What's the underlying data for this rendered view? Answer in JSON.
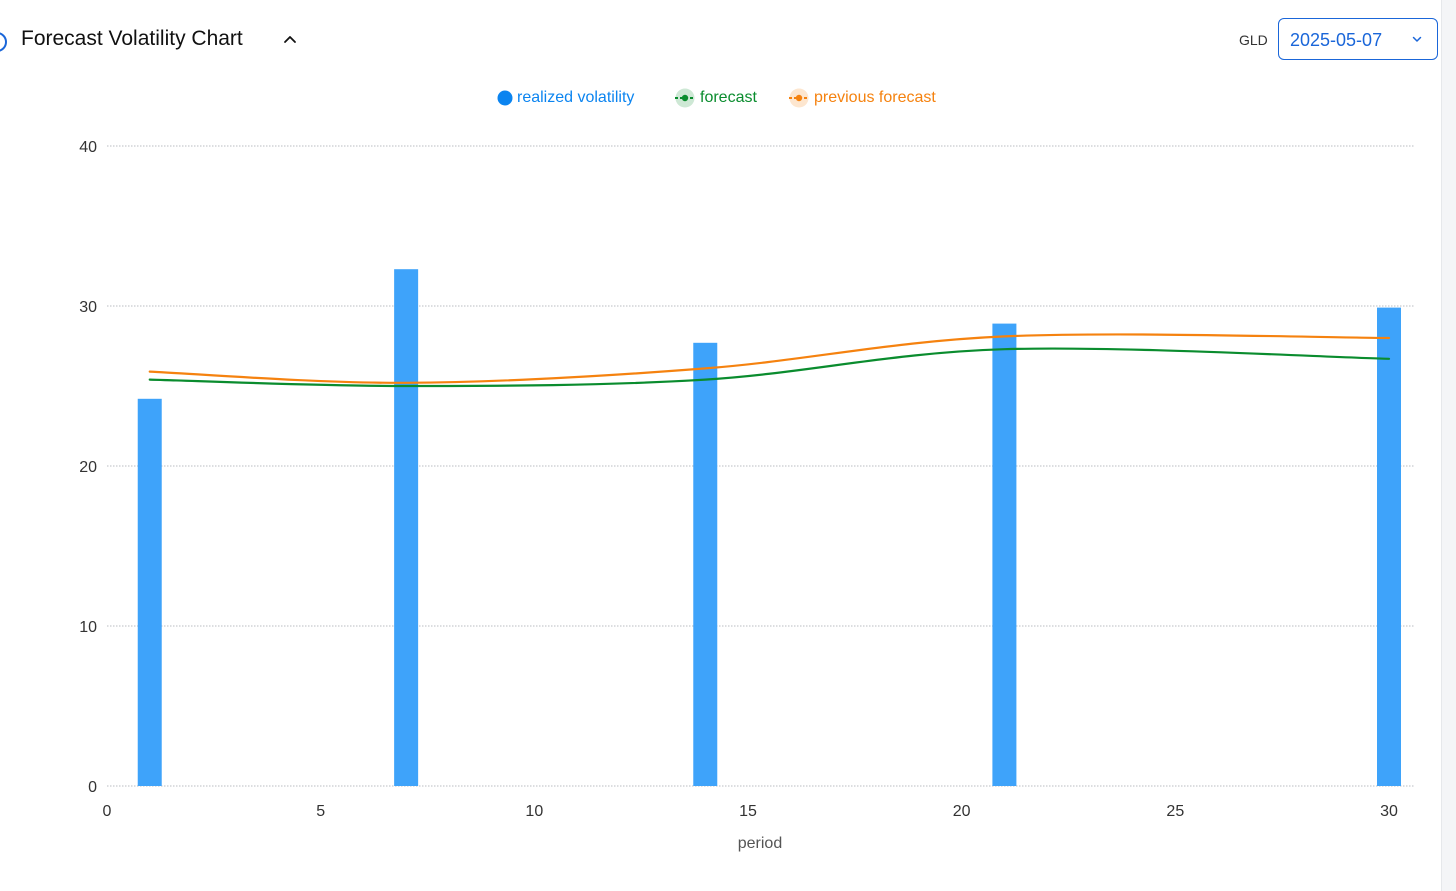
{
  "header": {
    "title": "Forecast Volatility Chart",
    "collapse_icon": "chevron-up-icon"
  },
  "controls": {
    "ticker_label": "GLD",
    "date_value": "2025-05-07",
    "dropdown_icon": "chevron-down-icon"
  },
  "colors": {
    "realized": "#3ea3fa",
    "realized_legend": "#0b84f0",
    "forecast": "#0a8c2e",
    "previous_forecast": "#f5820f",
    "accent": "#1a66d9"
  },
  "chart_data": {
    "type": "bar",
    "xlabel": "period",
    "ylabel": "",
    "xlim": [
      0,
      30
    ],
    "ylim": [
      0,
      40
    ],
    "xticks": [
      "0",
      "5",
      "10",
      "15",
      "20",
      "25",
      "30"
    ],
    "yticks": [
      "0",
      "10",
      "20",
      "30",
      "40"
    ],
    "grid": true,
    "legend_position": "top-center",
    "series": [
      {
        "name": "realized volatility",
        "type": "bar",
        "x": [
          1,
          7,
          14,
          21,
          30
        ],
        "values": [
          24.2,
          32.3,
          27.7,
          28.9,
          29.9
        ]
      },
      {
        "name": "forecast",
        "type": "line",
        "x": [
          1,
          7,
          14,
          21,
          30
        ],
        "values": [
          25.4,
          25.0,
          25.4,
          27.3,
          26.7
        ]
      },
      {
        "name": "previous forecast",
        "type": "line",
        "x": [
          1,
          7,
          14,
          21,
          30
        ],
        "values": [
          25.9,
          25.2,
          26.1,
          28.1,
          28.0
        ]
      }
    ]
  }
}
